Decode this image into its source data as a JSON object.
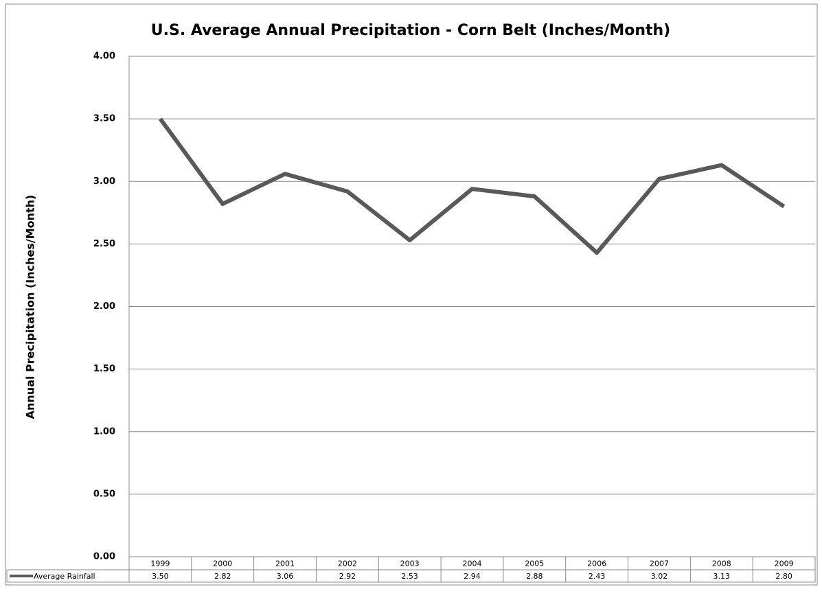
{
  "chart_data": {
    "type": "line",
    "title": "U.S. Average Annual Precipitation - Corn Belt (Inches/Month)",
    "y_label": "Annual Precipitation (Inches/Month)",
    "categories": [
      "1999",
      "2000",
      "2001",
      "2002",
      "2003",
      "2004",
      "2005",
      "2006",
      "2007",
      "2008",
      "2009"
    ],
    "series": [
      {
        "name": "Average Rainfall",
        "color": "#595959",
        "values": [
          3.5,
          2.82,
          3.06,
          2.92,
          2.53,
          2.94,
          2.88,
          2.43,
          3.02,
          3.13,
          2.8
        ],
        "value_labels": [
          "3.50",
          "2.82",
          "3.06",
          "2.92",
          "2.53",
          "2.94",
          "2.88",
          "2.43",
          "3.02",
          "3.13",
          "2.80"
        ]
      }
    ],
    "ylim": [
      0,
      4
    ],
    "yticks": [
      {
        "value": 0,
        "label": "0.00"
      },
      {
        "value": 0.5,
        "label": "0.50"
      },
      {
        "value": 1,
        "label": "1.00"
      },
      {
        "value": 1.5,
        "label": "1.50"
      },
      {
        "value": 2,
        "label": "2.00"
      },
      {
        "value": 2.5,
        "label": "2.50"
      },
      {
        "value": 3,
        "label": "3.00"
      },
      {
        "value": 3.5,
        "label": "3.50"
      },
      {
        "value": 4,
        "label": "4.00"
      }
    ],
    "grid": true
  }
}
